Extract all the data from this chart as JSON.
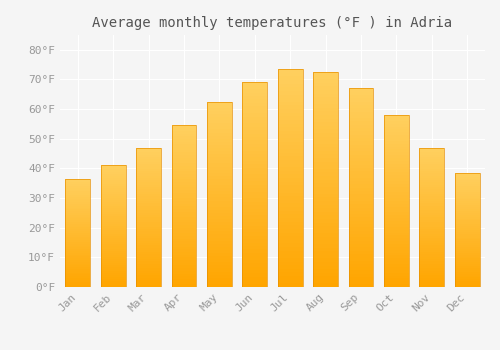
{
  "months": [
    "Jan",
    "Feb",
    "Mar",
    "Apr",
    "May",
    "Jun",
    "Jul",
    "Aug",
    "Sep",
    "Oct",
    "Nov",
    "Dec"
  ],
  "values": [
    36.5,
    41.0,
    47.0,
    54.5,
    62.5,
    69.0,
    73.5,
    72.5,
    67.0,
    58.0,
    47.0,
    38.5
  ],
  "bar_color_top": "#FFD060",
  "bar_color_bottom": "#FFA500",
  "bar_border_color": "#E89000",
  "title": "Average monthly temperatures (°F ) in Adria",
  "ylim": [
    0,
    85
  ],
  "yticks": [
    0,
    10,
    20,
    30,
    40,
    50,
    60,
    70,
    80
  ],
  "background_color": "#f5f5f5",
  "plot_bg_color": "#f5f5f5",
  "grid_color": "#ffffff",
  "title_fontsize": 10,
  "tick_fontsize": 8,
  "font_family": "monospace",
  "tick_color": "#999999",
  "title_color": "#555555",
  "bar_width": 0.7,
  "n_gradient_steps": 60
}
